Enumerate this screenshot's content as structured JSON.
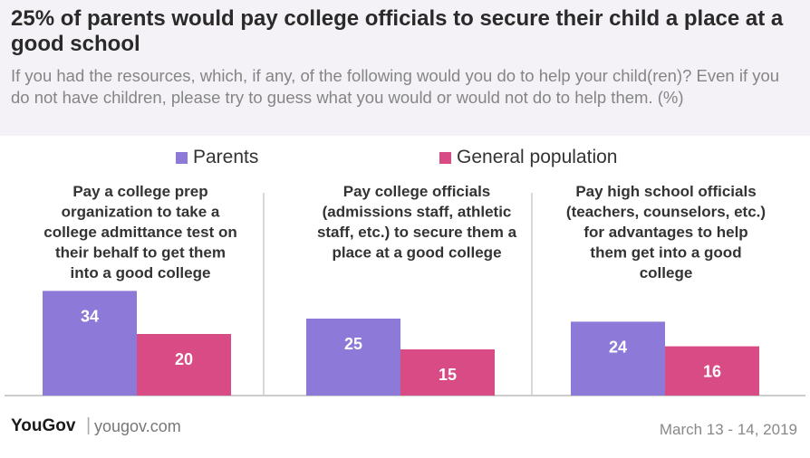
{
  "header": {
    "title": "25% of parents would pay college officials to secure their child a place at a good school",
    "subtitle": "If you had the resources, which, if any, of the following would you do to help your child(ren)? Even if you do not have children, please try to guess what you would or would not do to help them.  (%)"
  },
  "legend": {
    "parents": "Parents",
    "general": "General population"
  },
  "colors": {
    "parents": "#8d79d7",
    "general": "#d84b85",
    "axis": "#cccccc"
  },
  "chart_data": {
    "type": "bar",
    "title": "25% of parents would pay college officials to secure their child a place at a good school",
    "categories": [
      "Pay a college prep organization to take a college admittance test on their behalf to get them into a good college",
      "Pay college officials (admissions staff, athletic staff, etc.) to secure them a place at a good college",
      "Pay high school officials (teachers, counselors, etc.) for advantages to help them get into a good college"
    ],
    "category_lines": [
      [
        "Pay a college prep",
        "organization to take a",
        "college admittance test on",
        "their behalf to get them",
        "into a good college"
      ],
      [
        "Pay college officials",
        "(admissions staff, athletic",
        "staff, etc.) to secure them a",
        "place at a good college"
      ],
      [
        "Pay high school officials",
        "(teachers, counselors, etc.)",
        "for advantages to help",
        "them get into a good",
        "college"
      ]
    ],
    "series": [
      {
        "name": "Parents",
        "values": [
          34,
          25,
          24
        ]
      },
      {
        "name": "General population",
        "values": [
          20,
          15,
          16
        ]
      }
    ],
    "ylim": [
      0,
      40
    ],
    "legend_position": "top",
    "grid": false
  },
  "footer": {
    "logo": "YouGov",
    "site": "yougov.com",
    "date": "March 13 - 14, 2019"
  }
}
